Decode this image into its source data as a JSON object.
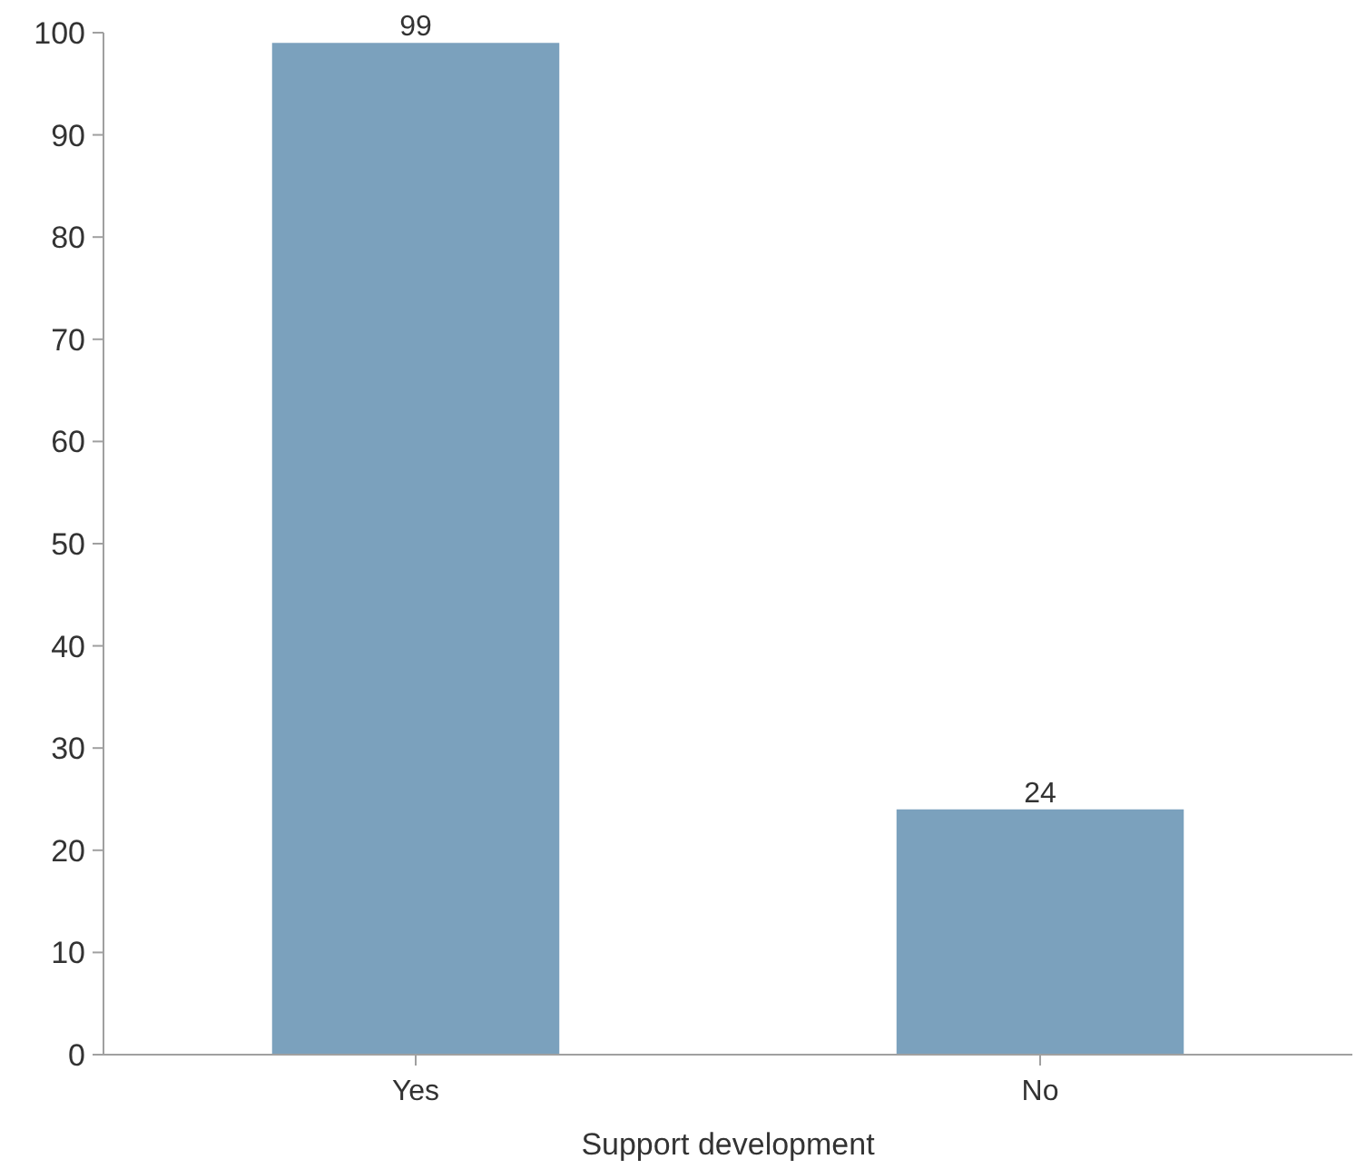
{
  "chart_data": {
    "type": "bar",
    "xlabel": "Support development",
    "categories": [
      "Yes",
      "No"
    ],
    "values": [
      99,
      24
    ],
    "color": "#7ba1bd",
    "ylim": [
      0,
      100
    ],
    "yticks": [
      0,
      10,
      20,
      30,
      40,
      50,
      60,
      70,
      80,
      90,
      100
    ],
    "data_labels": true,
    "grid": false
  }
}
